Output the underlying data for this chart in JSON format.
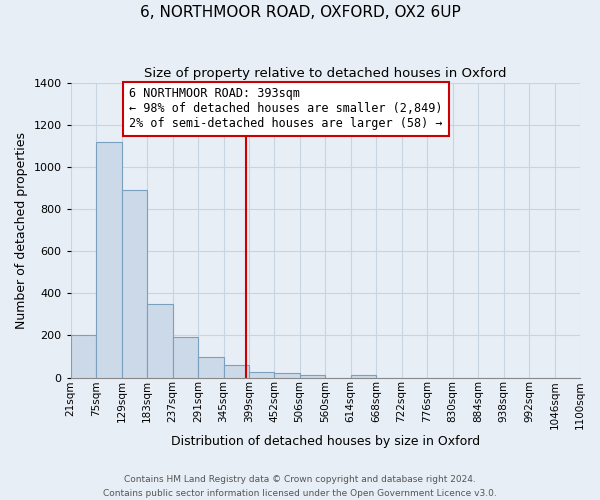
{
  "title": "6, NORTHMOOR ROAD, OXFORD, OX2 6UP",
  "subtitle": "Size of property relative to detached houses in Oxford",
  "xlabel": "Distribution of detached houses by size in Oxford",
  "ylabel": "Number of detached properties",
  "bar_color": "#ccd9e8",
  "bar_edge_color": "#7aa0c0",
  "bin_edges": [
    21,
    75,
    129,
    183,
    237,
    291,
    345,
    399,
    452,
    506,
    560,
    614,
    668,
    722,
    776,
    830,
    884,
    938,
    992,
    1046,
    1100
  ],
  "bar_heights": [
    200,
    1120,
    890,
    350,
    195,
    100,
    58,
    25,
    20,
    13,
    0,
    12,
    0,
    0,
    0,
    0,
    0,
    0,
    0,
    0
  ],
  "tick_labels": [
    "21sqm",
    "75sqm",
    "129sqm",
    "183sqm",
    "237sqm",
    "291sqm",
    "345sqm",
    "399sqm",
    "452sqm",
    "506sqm",
    "560sqm",
    "614sqm",
    "668sqm",
    "722sqm",
    "776sqm",
    "830sqm",
    "884sqm",
    "938sqm",
    "992sqm",
    "1046sqm",
    "1100sqm"
  ],
  "vline_x": 393,
  "vline_color": "#cc0000",
  "annotation_line1": "6 NORTHMOOR ROAD: 393sqm",
  "annotation_line2": "← 98% of detached houses are smaller (2,849)",
  "annotation_line3": "2% of semi-detached houses are larger (58) →",
  "ylim": [
    0,
    1400
  ],
  "yticks": [
    0,
    200,
    400,
    600,
    800,
    1000,
    1200,
    1400
  ],
  "footnote": "Contains HM Land Registry data © Crown copyright and database right 2024.\nContains public sector information licensed under the Open Government Licence v3.0.",
  "background_color": "#e8eef5",
  "grid_color": "#c8d4e0",
  "title_fontsize": 11,
  "subtitle_fontsize": 9.5,
  "axis_label_fontsize": 9,
  "tick_fontsize": 7.5,
  "annotation_fontsize": 8.5,
  "footnote_fontsize": 6.5
}
